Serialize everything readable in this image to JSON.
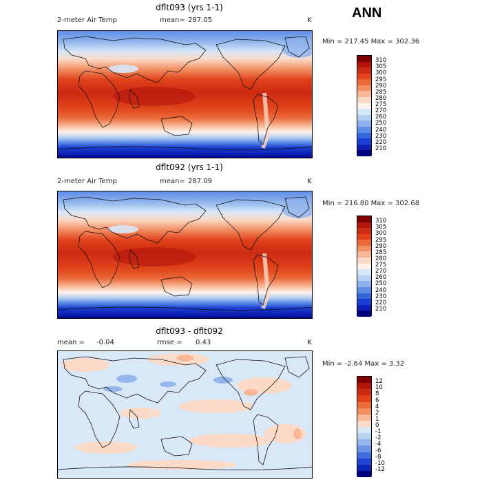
{
  "season": "ANN",
  "panels": [
    {
      "title": "dflt093 (yrs 1-1)",
      "left_label": "2-meter Air Temp",
      "mean_label": "mean=",
      "mean_value": "287.05",
      "rmse_label": "",
      "rmse_value": "",
      "units": "K",
      "minmax": "Min = 217.45 Max = 302.36",
      "type": "abs"
    },
    {
      "title": "dflt092 (yrs 1-1)",
      "left_label": "2-meter Air Temp",
      "mean_label": "mean=",
      "mean_value": "287.09",
      "rmse_label": "",
      "rmse_value": "",
      "units": "K",
      "minmax": "Min = 216.80 Max = 302.68",
      "type": "abs"
    },
    {
      "title": "dflt093 - dflt092",
      "left_label": "mean =",
      "mean_label": "",
      "mean_value": "-0.04",
      "rmse_label": "rmse =",
      "rmse_value": "0.43",
      "units": "K",
      "minmax": "Min = -2.64 Max = 3.32",
      "type": "diff"
    }
  ],
  "colorbars": {
    "abs": {
      "labels": [
        "310",
        "305",
        "300",
        "295",
        "290",
        "285",
        "280",
        "275",
        "270",
        "260",
        "250",
        "240",
        "230",
        "220",
        "210"
      ],
      "colors": [
        "#7f0000",
        "#b2150b",
        "#cc2a12",
        "#e0431a",
        "#ea6a3a",
        "#f28f63",
        "#f8b797",
        "#fbdac7",
        "#fff4ec",
        "#d6e7f8",
        "#b5d0f2",
        "#8eb3ec",
        "#5e8de6",
        "#3466dc",
        "#1c3fd3",
        "#0d20b3",
        "#00007c"
      ]
    },
    "diff": {
      "labels": [
        "12",
        "10",
        "8",
        "6",
        "4",
        "2",
        "1",
        "0",
        "-1",
        "-2",
        "-4",
        "-6",
        "-8",
        "-10",
        "-12"
      ],
      "colors": [
        "#7f0000",
        "#b2150b",
        "#cc2a12",
        "#e0431a",
        "#ea6a3a",
        "#f28f63",
        "#f8b797",
        "#fbdac7",
        "#d9e8f7",
        "#b9d3f2",
        "#94b6ec",
        "#6b93e6",
        "#3f6ddd",
        "#2245d3",
        "#0f25b6",
        "#00007c"
      ]
    }
  }
}
